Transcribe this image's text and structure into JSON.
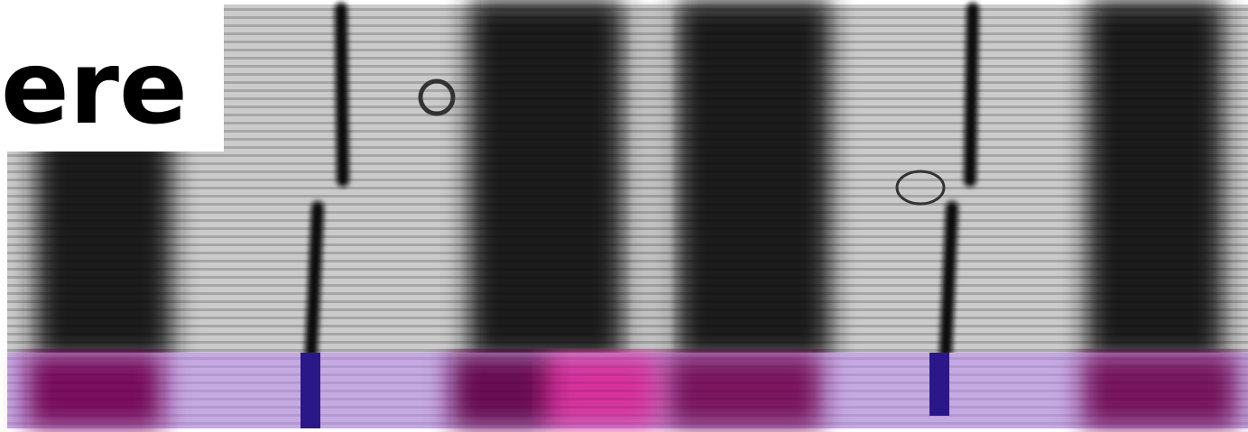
{
  "label": "here"
}
